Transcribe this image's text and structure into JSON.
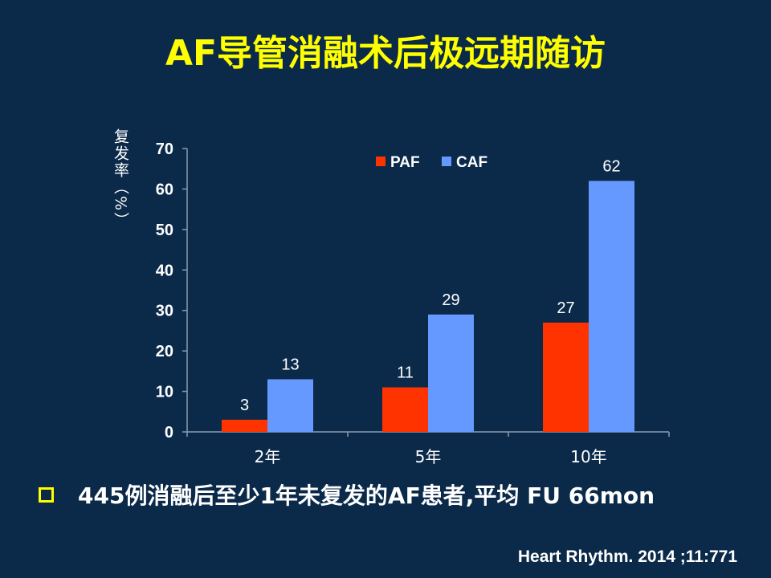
{
  "slide": {
    "title": "AF导管消融术后极远期随访",
    "bullet": "445例消融后至少1年未复发的AF患者,平均 FU 66mon",
    "citation": "Heart Rhythm. 2014 ;11:771"
  },
  "chart_data": {
    "type": "bar",
    "categories": [
      "2年",
      "5年",
      "10年"
    ],
    "series": [
      {
        "name": "PAF",
        "values": [
          3,
          11,
          27
        ],
        "color": "#ff3300"
      },
      {
        "name": "CAF",
        "values": [
          13,
          29,
          62
        ],
        "color": "#6699ff"
      }
    ],
    "data_labels": true,
    "xlabel": "",
    "ylabel": "复发率（%）",
    "ylim": [
      0,
      70
    ],
    "yticks": [
      0,
      10,
      20,
      30,
      40,
      50,
      60,
      70
    ],
    "grid": false,
    "legend": "top-center",
    "label_color": "#ffffff"
  }
}
